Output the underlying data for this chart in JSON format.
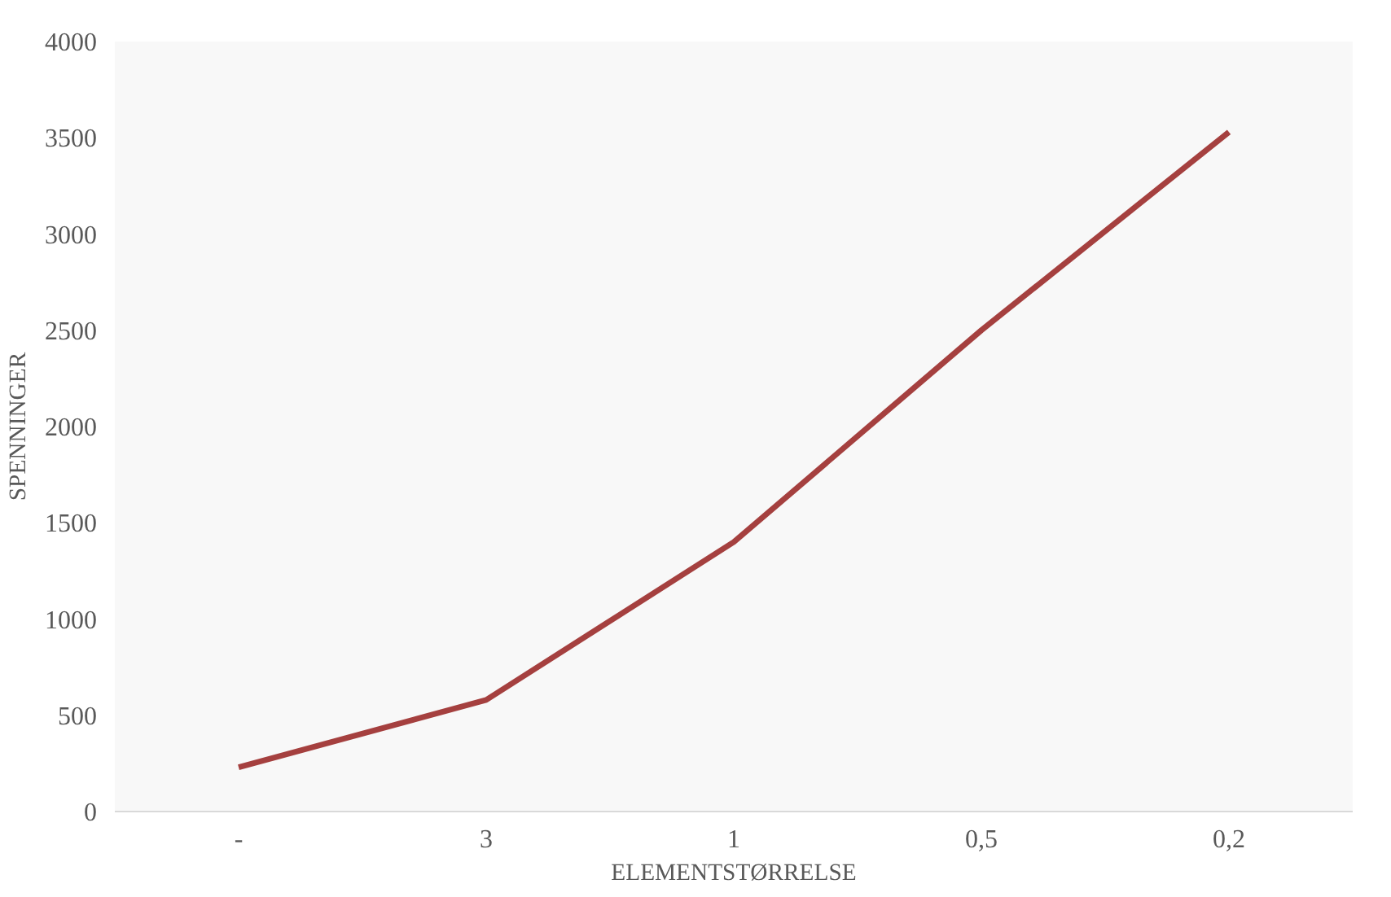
{
  "chart_data": {
    "type": "line",
    "xlabel": "ELEMENTSTØRRELSE",
    "ylabel": "SPENNINGER",
    "categories": [
      "-",
      "3",
      "1",
      "0,5",
      "0,2"
    ],
    "series": [
      {
        "color": "#a5403f",
        "values": [
          230,
          580,
          1400,
          2500,
          3530
        ]
      }
    ],
    "ylim": [
      0,
      4000
    ],
    "yticks": [
      0,
      500,
      1000,
      1500,
      2000,
      2500,
      3000,
      3500,
      4000
    ],
    "marker": "none",
    "line_style": "solid"
  }
}
